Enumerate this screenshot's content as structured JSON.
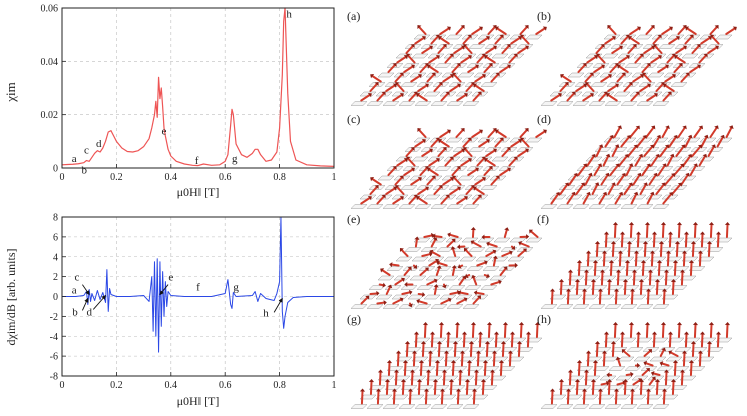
{
  "chart_data": [
    {
      "type": "line",
      "id": "susceptibility",
      "title": "",
      "xlabel": "μ0H‖ [T]",
      "ylabel": "χim",
      "xlim": [
        0,
        1
      ],
      "ylim": [
        0,
        0.06
      ],
      "xticks": [
        0,
        0.2,
        0.4,
        0.6,
        0.8,
        1
      ],
      "xtick_labels": [
        "0",
        "0.2",
        "0.4",
        "0.6",
        "0.8",
        "1"
      ],
      "yticks": [
        0,
        0.02,
        0.04,
        0.06
      ],
      "ytick_labels": [
        "0",
        "0.02",
        "0.04",
        "0.06"
      ],
      "grid": true,
      "series": [
        {
          "name": "χim",
          "color": "#ee5555",
          "x": [
            0,
            0.02,
            0.04,
            0.06,
            0.08,
            0.09,
            0.1,
            0.11,
            0.12,
            0.13,
            0.14,
            0.15,
            0.16,
            0.17,
            0.18,
            0.19,
            0.2,
            0.22,
            0.24,
            0.26,
            0.28,
            0.3,
            0.32,
            0.33,
            0.34,
            0.345,
            0.35,
            0.355,
            0.36,
            0.365,
            0.37,
            0.375,
            0.38,
            0.39,
            0.4,
            0.42,
            0.45,
            0.48,
            0.5,
            0.52,
            0.55,
            0.58,
            0.6,
            0.61,
            0.62,
            0.625,
            0.63,
            0.64,
            0.66,
            0.68,
            0.7,
            0.71,
            0.72,
            0.73,
            0.75,
            0.77,
            0.79,
            0.8,
            0.81,
            0.815,
            0.82,
            0.83,
            0.84,
            0.86,
            0.9,
            0.95,
            1
          ],
          "values": [
            0.0012,
            0.0013,
            0.0014,
            0.0016,
            0.002,
            0.0028,
            0.0025,
            0.004,
            0.0055,
            0.0065,
            0.006,
            0.0075,
            0.01,
            0.0135,
            0.014,
            0.012,
            0.01,
            0.0075,
            0.0062,
            0.006,
            0.0065,
            0.008,
            0.011,
            0.015,
            0.02,
            0.025,
            0.019,
            0.034,
            0.026,
            0.03,
            0.023,
            0.015,
            0.012,
            0.007,
            0.0045,
            0.0025,
            0.0015,
            0.001,
            0.0009,
            0.0015,
            0.001,
            0.0012,
            0.0025,
            0.005,
            0.016,
            0.022,
            0.02,
            0.009,
            0.005,
            0.004,
            0.0055,
            0.007,
            0.007,
            0.005,
            0.0025,
            0.003,
            0.006,
            0.015,
            0.035,
            0.055,
            0.06,
            0.028,
            0.01,
            0.003,
            0.0012,
            0.0008,
            0.0006
          ]
        }
      ],
      "annotations": [
        {
          "text": "a",
          "x": 0.045,
          "y": 0.0022
        },
        {
          "text": "b",
          "x": 0.082,
          "y": -0.002
        },
        {
          "text": "c",
          "x": 0.09,
          "y": 0.0055
        },
        {
          "text": "d",
          "x": 0.135,
          "y": 0.0078
        },
        {
          "text": "e",
          "x": 0.375,
          "y": 0.0125
        },
        {
          "text": "f",
          "x": 0.495,
          "y": 0.0015
        },
        {
          "text": "g",
          "x": 0.635,
          "y": 0.0022
        },
        {
          "text": "h",
          "x": 0.835,
          "y": 0.0565
        }
      ]
    },
    {
      "type": "line",
      "id": "derivative",
      "title": "",
      "xlabel": "μ0H‖ [T]",
      "ylabel": "dχim/dB [arb. units]",
      "xlim": [
        0,
        1
      ],
      "ylim": [
        -8,
        8
      ],
      "xticks": [
        0,
        0.2,
        0.4,
        0.6,
        0.8,
        1
      ],
      "xtick_labels": [
        "0",
        "0.2",
        "0.4",
        "0.6",
        "0.8",
        "1"
      ],
      "yticks": [
        -8,
        -6,
        -4,
        -2,
        0,
        2,
        4,
        6,
        8
      ],
      "ytick_labels": [
        "-8",
        "-6",
        "-4",
        "-2",
        "0",
        "2",
        "4",
        "6",
        "8"
      ],
      "grid": true,
      "series": [
        {
          "name": "dχim/dB",
          "color": "#2b48e6",
          "x": [
            0,
            0.05,
            0.08,
            0.09,
            0.095,
            0.1,
            0.105,
            0.11,
            0.12,
            0.13,
            0.14,
            0.15,
            0.16,
            0.165,
            0.17,
            0.175,
            0.18,
            0.2,
            0.25,
            0.3,
            0.32,
            0.33,
            0.335,
            0.34,
            0.345,
            0.35,
            0.355,
            0.36,
            0.365,
            0.37,
            0.375,
            0.38,
            0.385,
            0.39,
            0.4,
            0.45,
            0.5,
            0.55,
            0.6,
            0.61,
            0.62,
            0.625,
            0.63,
            0.64,
            0.7,
            0.71,
            0.72,
            0.73,
            0.75,
            0.78,
            0.79,
            0.8,
            0.805,
            0.81,
            0.815,
            0.82,
            0.83,
            0.85,
            0.9,
            1
          ],
          "values": [
            0,
            0,
            0.1,
            0.5,
            -0.8,
            0.7,
            -0.5,
            0.3,
            -0.4,
            0.6,
            -0.3,
            0.4,
            -0.6,
            2.7,
            -1.5,
            0.8,
            0.2,
            0,
            0,
            0.1,
            -0.5,
            2,
            -3.5,
            3.5,
            -4,
            3.8,
            -5.6,
            3.5,
            -3,
            2.5,
            -2,
            1.5,
            -1,
            0.5,
            0.1,
            0,
            0,
            0,
            0.3,
            1.7,
            -0.8,
            -1.2,
            0.4,
            0,
            0.1,
            0.5,
            -0.5,
            0.3,
            -0.2,
            -0.4,
            0.3,
            1.5,
            8,
            -1.5,
            -3.2,
            -2,
            -0.6,
            -0.1,
            0,
            0
          ]
        }
      ],
      "annotations": [
        {
          "text": "a",
          "x": 0.045,
          "y": 0.3
        },
        {
          "text": "b",
          "x": 0.048,
          "y": -1.9
        },
        {
          "text": "c",
          "x": 0.055,
          "y": 1.6
        },
        {
          "text": "d",
          "x": 0.1,
          "y": -1.9
        },
        {
          "text": "e",
          "x": 0.4,
          "y": 1.6
        },
        {
          "text": "f",
          "x": 0.5,
          "y": 0.6
        },
        {
          "text": "g",
          "x": 0.64,
          "y": 0.6
        },
        {
          "text": "h",
          "x": 0.75,
          "y": -2.0
        }
      ]
    }
  ],
  "spin_panels": [
    {
      "label": "(a)",
      "pattern": "inplane"
    },
    {
      "label": "(b)",
      "pattern": "inplane-dense"
    },
    {
      "label": "(c)",
      "pattern": "inplane"
    },
    {
      "label": "(d)",
      "pattern": "tilted"
    },
    {
      "label": "(e)",
      "pattern": "skyrmion"
    },
    {
      "label": "(f)",
      "pattern": "up"
    },
    {
      "label": "(g)",
      "pattern": "up"
    },
    {
      "label": "(h)",
      "pattern": "up-skyrmion"
    }
  ],
  "colors": {
    "spin": "#d23a2a",
    "spin_dark": "#8e1f15",
    "tile": "#f4f4f4"
  }
}
